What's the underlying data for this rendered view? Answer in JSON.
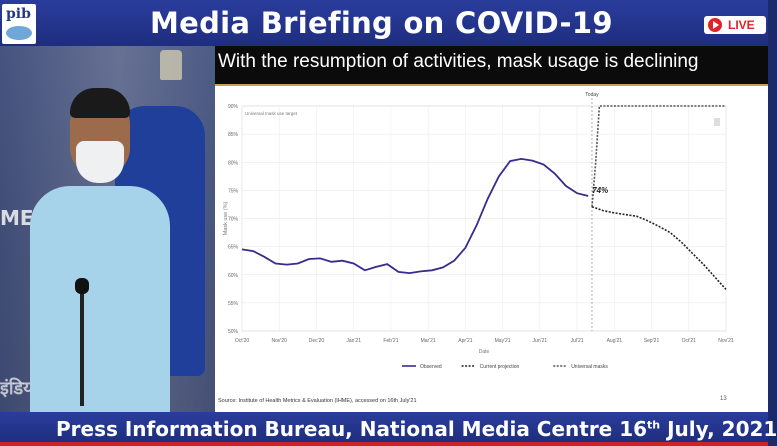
{
  "header": {
    "title": "Media Briefing on COVID-19",
    "logo_text": "pib",
    "live_label": "LIVE"
  },
  "slide": {
    "title": "With the resumption of activities, mask usage is declining",
    "source": "Source: Institute of Health Metrics & Evaluation (IHME), accessed on 16th July'21",
    "page_number": "13"
  },
  "video": {
    "wall_text": "MEDIA",
    "wall_text_hindi": "इंडिया"
  },
  "footer": {
    "text": "Press Information Bureau, National Media Centre  16",
    "sup": "th",
    "text2": " July, 2021"
  },
  "chart_data": {
    "type": "line",
    "x": [
      "Oct'20",
      "Nov'20",
      "Dec'20",
      "Jan'21",
      "Feb'21",
      "Mar'21",
      "Apr'21",
      "May'21",
      "Jun'21",
      "Jul'21",
      "Aug'21",
      "Sep'21",
      "Oct'21",
      "Nov'21"
    ],
    "xlabel": "Date",
    "ylabel": "Mask use (%)",
    "yticks": [
      "50%",
      "55%",
      "60%",
      "65%",
      "70%",
      "75%",
      "80%",
      "85%",
      "90%"
    ],
    "ylim": [
      50,
      90
    ],
    "annotation_today": "Today",
    "annotation_value": "74%",
    "target_label": "Universal mask use target",
    "series": [
      {
        "name": "Observed",
        "style": "solid",
        "color": "#3b2a8c",
        "points": [
          [
            0,
            64.5
          ],
          [
            0.3,
            64.2
          ],
          [
            0.6,
            63.2
          ],
          [
            0.9,
            62.0
          ],
          [
            1.2,
            61.8
          ],
          [
            1.5,
            62.0
          ],
          [
            1.8,
            62.8
          ],
          [
            2.1,
            62.9
          ],
          [
            2.4,
            62.3
          ],
          [
            2.7,
            62.5
          ],
          [
            3.0,
            62.0
          ],
          [
            3.3,
            60.8
          ],
          [
            3.6,
            61.4
          ],
          [
            3.9,
            61.9
          ],
          [
            4.2,
            60.5
          ],
          [
            4.5,
            60.3
          ],
          [
            4.8,
            60.6
          ],
          [
            5.1,
            60.8
          ],
          [
            5.4,
            61.3
          ],
          [
            5.7,
            62.5
          ],
          [
            6.0,
            64.8
          ],
          [
            6.3,
            68.8
          ],
          [
            6.6,
            73.5
          ],
          [
            6.9,
            77.5
          ],
          [
            7.2,
            80.2
          ],
          [
            7.5,
            80.6
          ],
          [
            7.8,
            80.3
          ],
          [
            8.1,
            79.6
          ],
          [
            8.4,
            78.0
          ],
          [
            8.7,
            75.8
          ],
          [
            9.0,
            74.5
          ],
          [
            9.3,
            74.0
          ]
        ]
      },
      {
        "name": "Current projection",
        "style": "dashed",
        "color": "#222222",
        "points": [
          [
            9.4,
            72.1
          ],
          [
            9.7,
            71.4
          ],
          [
            10.0,
            71.0
          ],
          [
            10.3,
            70.7
          ],
          [
            10.6,
            70.4
          ],
          [
            10.9,
            69.6
          ],
          [
            11.2,
            68.6
          ],
          [
            11.5,
            67.5
          ],
          [
            11.8,
            65.8
          ],
          [
            12.1,
            63.8
          ],
          [
            12.4,
            61.8
          ],
          [
            12.7,
            59.6
          ],
          [
            13.0,
            57.4
          ]
        ]
      },
      {
        "name": "Universal masks",
        "style": "dashed",
        "color": "#555555",
        "points": [
          [
            9.4,
            72.1
          ],
          [
            9.5,
            80
          ],
          [
            9.6,
            90
          ],
          [
            13.0,
            90
          ]
        ]
      }
    ],
    "legend": [
      "Observed",
      "Current projection",
      "Universal masks"
    ],
    "legend_position": "bottom"
  }
}
